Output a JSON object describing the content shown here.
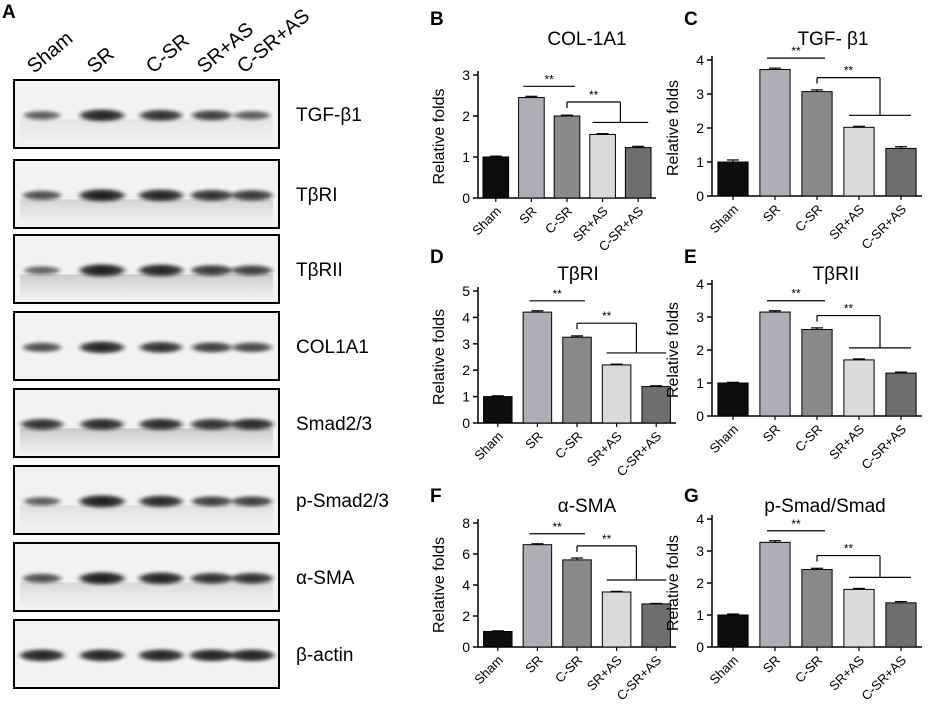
{
  "blot": {
    "panel_letter": "A",
    "lanes": [
      "Sham",
      "SR",
      "C-SR",
      "SR+AS",
      "C-SR+AS"
    ],
    "rows": [
      {
        "label": "TGF-β1",
        "intensity": [
          0.55,
          0.95,
          0.85,
          0.75,
          0.55
        ],
        "smear": 0.25
      },
      {
        "label": "TβRI",
        "intensity": [
          0.65,
          1.0,
          0.95,
          0.85,
          0.8
        ],
        "smear": 0.55
      },
      {
        "label": "TβRII",
        "intensity": [
          0.5,
          1.0,
          0.95,
          0.8,
          0.75
        ],
        "smear": 0.7
      },
      {
        "label": "COL1A1",
        "intensity": [
          0.65,
          0.95,
          0.85,
          0.75,
          0.7
        ],
        "smear": 0.15
      },
      {
        "label": "Smad2/3",
        "intensity": [
          0.85,
          0.9,
          0.9,
          0.85,
          0.9
        ],
        "smear": 0.75
      },
      {
        "label": "p-Smad2/3",
        "intensity": [
          0.55,
          1.0,
          0.9,
          0.75,
          0.75
        ],
        "smear": 0.35
      },
      {
        "label": "α-SMA",
        "intensity": [
          0.65,
          1.0,
          0.95,
          0.85,
          0.85
        ],
        "smear": 0.45
      },
      {
        "label": "β-actin",
        "intensity": [
          0.95,
          0.95,
          0.95,
          0.95,
          0.95
        ],
        "smear": 0.1
      }
    ]
  },
  "chart_data": [
    {
      "panel": "B",
      "type": "bar",
      "title": "COL-1A1",
      "ylabel": "Relative folds",
      "categories": [
        "Sham",
        "SR",
        "C-SR",
        "SR+AS",
        "C-SR+AS"
      ],
      "values": [
        1.0,
        2.45,
        2.0,
        1.55,
        1.23
      ],
      "errors": [
        0.02,
        0.03,
        0.02,
        0.02,
        0.03
      ],
      "ylim": [
        0,
        3
      ],
      "yticks": [
        0,
        1,
        2,
        3
      ],
      "significance": [
        {
          "from": 1,
          "to": 2,
          "label": "**"
        },
        {
          "from": 2,
          "to": [
            3,
            4
          ],
          "label": "**"
        }
      ]
    },
    {
      "panel": "C",
      "type": "bar",
      "title": "TGF- β1",
      "ylabel": "Relative folds",
      "categories": [
        "Sham",
        "SR",
        "C-SR",
        "SR+AS",
        "C-SR+AS"
      ],
      "values": [
        1.0,
        3.72,
        3.07,
        2.02,
        1.4
      ],
      "errors": [
        0.06,
        0.04,
        0.05,
        0.03,
        0.05
      ],
      "ylim": [
        0,
        4
      ],
      "yticks": [
        0,
        1,
        2,
        3,
        4
      ],
      "significance": [
        {
          "from": 1,
          "to": 2,
          "label": "**"
        },
        {
          "from": 2,
          "to": [
            3,
            4
          ],
          "label": "**"
        }
      ]
    },
    {
      "panel": "D",
      "type": "bar",
      "title": "TβRI",
      "ylabel": "Relative folds",
      "categories": [
        "Sham",
        "SR",
        "C-SR",
        "SR+AS",
        "C-SR+AS"
      ],
      "values": [
        1.0,
        4.2,
        3.25,
        2.2,
        1.38
      ],
      "errors": [
        0.03,
        0.05,
        0.05,
        0.03,
        0.03
      ],
      "ylim": [
        0,
        5
      ],
      "yticks": [
        0,
        1,
        2,
        3,
        4,
        5
      ],
      "significance": [
        {
          "from": 1,
          "to": 2,
          "label": "**"
        },
        {
          "from": 2,
          "to": [
            3,
            4
          ],
          "label": "**"
        }
      ]
    },
    {
      "panel": "E",
      "type": "bar",
      "title": "TβRII",
      "ylabel": "Relative folds",
      "categories": [
        "Sham",
        "SR",
        "C-SR",
        "SR+AS",
        "C-SR+AS"
      ],
      "values": [
        1.0,
        3.15,
        2.62,
        1.7,
        1.3
      ],
      "errors": [
        0.02,
        0.04,
        0.05,
        0.03,
        0.03
      ],
      "ylim": [
        0,
        4
      ],
      "yticks": [
        0,
        1,
        2,
        3,
        4
      ],
      "significance": [
        {
          "from": 1,
          "to": 2,
          "label": "**"
        },
        {
          "from": 2,
          "to": [
            3,
            4
          ],
          "label": "**"
        }
      ]
    },
    {
      "panel": "F",
      "type": "bar",
      "title": "α-SMA",
      "ylabel": "Relative folds",
      "categories": [
        "Sham",
        "SR",
        "C-SR",
        "SR+AS",
        "C-SR+AS"
      ],
      "values": [
        1.0,
        6.6,
        5.62,
        3.55,
        2.78
      ],
      "errors": [
        0.04,
        0.06,
        0.12,
        0.04,
        0.03
      ],
      "ylim": [
        0,
        8
      ],
      "yticks": [
        0,
        2,
        4,
        6,
        8
      ],
      "significance": [
        {
          "from": 1,
          "to": 2,
          "label": "**"
        },
        {
          "from": 2,
          "to": [
            3,
            4
          ],
          "label": "**"
        }
      ]
    },
    {
      "panel": "G",
      "type": "bar",
      "title": "p-Smad/Smad",
      "ylabel": "Relative folds",
      "categories": [
        "Sham",
        "SR",
        "C-SR",
        "SR+AS",
        "C-SR+AS"
      ],
      "values": [
        1.0,
        3.27,
        2.42,
        1.8,
        1.38
      ],
      "errors": [
        0.03,
        0.05,
        0.04,
        0.03,
        0.04
      ],
      "ylim": [
        0,
        4
      ],
      "yticks": [
        0,
        1,
        2,
        3,
        4
      ],
      "significance": [
        {
          "from": 1,
          "to": 2,
          "label": "**"
        },
        {
          "from": 2,
          "to": [
            3,
            4
          ],
          "label": "**"
        }
      ]
    }
  ],
  "colors": {
    "bars": [
      "#0d0d0d",
      "#aeaeb6",
      "#8a8a8a",
      "#dadada",
      "#6e6e6e"
    ],
    "axis": "#000000",
    "blot_background": "#f2f2f2",
    "band": "#141414"
  }
}
